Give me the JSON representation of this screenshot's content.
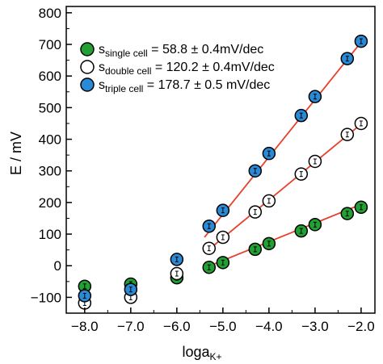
{
  "chart_data": {
    "type": "scatter",
    "xlabel": "loga",
    "xlabel_sub": "K+",
    "ylabel": "E / mV",
    "xlim": [
      -8.4,
      -1.7
    ],
    "ylim": [
      -150,
      820
    ],
    "x_reversed": false,
    "x_ticks": [
      -8.0,
      -7.0,
      -6.0,
      -5.0,
      -4.0,
      -3.0,
      -2.0
    ],
    "x_tick_labels": [
      "−8.0",
      "−7.0",
      "−6.0",
      "−5.0",
      "−4.0",
      "−3.0",
      "−2.0"
    ],
    "y_ticks": [
      -100,
      0,
      100,
      200,
      300,
      400,
      500,
      600,
      700,
      800
    ],
    "y_tick_labels": [
      "−100",
      "0",
      "100",
      "200",
      "300",
      "400",
      "500",
      "600",
      "700",
      "800"
    ],
    "grid": false,
    "legend_position": "top-left",
    "series": [
      {
        "legend_label": "s",
        "legend_sub": "single cell",
        "legend_value": " = 58.8 ± 0.4mV/dec",
        "color": "#22a033",
        "x": [
          -8.0,
          -7.0,
          -6.0,
          -5.3,
          -5.0,
          -4.3,
          -4.0,
          -3.3,
          -3.0,
          -2.3,
          -2.0
        ],
        "y": [
          -65,
          -58,
          -38,
          -5,
          10,
          52,
          70,
          110,
          130,
          165,
          185
        ],
        "fit": {
          "x": [
            -5.4,
            -1.9
          ],
          "y": [
            -7,
            200
          ]
        }
      },
      {
        "legend_label": "s",
        "legend_sub": "double cell",
        "legend_value": " = 120.2 ± 0.4mV/dec",
        "color": "#ffffff",
        "x": [
          -8.0,
          -7.0,
          -6.0,
          -5.3,
          -5.0,
          -4.3,
          -4.0,
          -3.3,
          -3.0,
          -2.3,
          -2.0
        ],
        "y": [
          -118,
          -100,
          -25,
          55,
          90,
          170,
          205,
          290,
          330,
          415,
          450
        ],
        "fit": {
          "x": [
            -5.4,
            -1.9
          ],
          "y": [
            40,
            460
          ]
        }
      },
      {
        "legend_label": "s",
        "legend_sub": "triple cell",
        "legend_value": " = 178.7 ± 0.5 mV/dec",
        "color": "#2a8ad6",
        "x": [
          -8.0,
          -7.0,
          -6.0,
          -5.3,
          -5.0,
          -4.3,
          -4.0,
          -3.3,
          -3.0,
          -2.3,
          -2.0
        ],
        "y": [
          -95,
          -75,
          20,
          125,
          175,
          300,
          355,
          475,
          535,
          655,
          710
        ],
        "fit": {
          "x": [
            -5.4,
            -1.9
          ],
          "y": [
            90,
            725
          ]
        }
      }
    ],
    "fit_color": "#e8402a"
  }
}
